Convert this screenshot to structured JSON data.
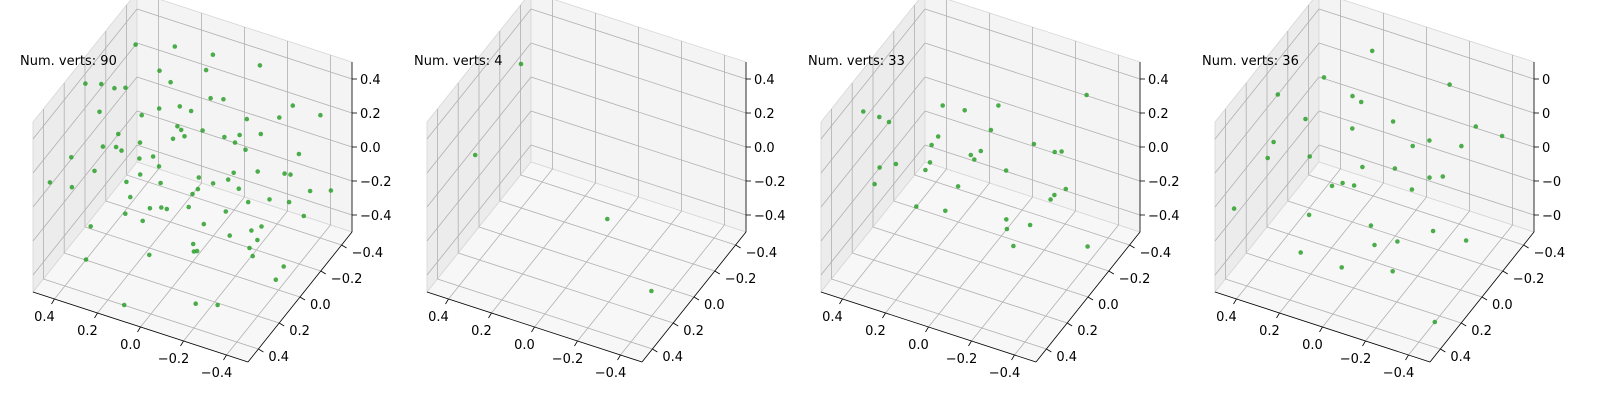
{
  "chart_data": [
    {
      "type": "scatter",
      "title": "Num. verts: 90",
      "x_ticks": [
        "0.4",
        "0.2",
        "0.0",
        "−0.2",
        "−0.4"
      ],
      "y_ticks": [
        "−0.4",
        "−0.2",
        "0.0",
        "0.2",
        "0.4"
      ],
      "z_ticks": [
        "0.4",
        "0.2",
        "0.0",
        "−0.2",
        "−0.4"
      ],
      "xlim": [
        -0.5,
        0.5
      ],
      "ylim": [
        -0.5,
        0.5
      ],
      "zlim": [
        -0.5,
        0.5
      ],
      "color": "#2ca02c",
      "points": [
        [
          0.44,
          -0.12,
          0.46
        ],
        [
          0.4,
          -0.05,
          0.42
        ],
        [
          0.36,
          0.1,
          0.3
        ],
        [
          0.46,
          0.2,
          0.18
        ],
        [
          0.3,
          0.3,
          0.05
        ],
        [
          0.42,
          0.38,
          -0.1
        ],
        [
          0.25,
          0.44,
          -0.2
        ],
        [
          0.38,
          0.15,
          -0.3
        ],
        [
          0.2,
          -0.3,
          0.4
        ],
        [
          0.15,
          -0.2,
          0.2
        ],
        [
          0.05,
          -0.4,
          0.3
        ],
        [
          0.1,
          -0.1,
          0.0
        ],
        [
          -0.05,
          -0.35,
          0.1
        ],
        [
          -0.15,
          -0.25,
          0.25
        ],
        [
          -0.2,
          -0.4,
          -0.05
        ],
        [
          -0.3,
          -0.3,
          0.15
        ],
        [
          -0.35,
          -0.1,
          -0.15
        ],
        [
          -0.4,
          -0.2,
          0.35
        ],
        [
          -0.25,
          0.05,
          -0.25
        ],
        [
          -0.1,
          0.1,
          0.2
        ],
        [
          0.0,
          0.0,
          -0.1
        ],
        [
          0.05,
          0.2,
          0.1
        ],
        [
          0.12,
          0.3,
          -0.35
        ],
        [
          -0.05,
          0.35,
          0.0
        ],
        [
          -0.2,
          0.25,
          -0.4
        ],
        [
          -0.35,
          0.3,
          0.05
        ],
        [
          -0.45,
          0.4,
          -0.2
        ],
        [
          -0.3,
          0.45,
          -0.45
        ],
        [
          0.28,
          -0.4,
          -0.1
        ],
        [
          0.35,
          -0.3,
          -0.4
        ],
        [
          0.22,
          -0.05,
          0.15
        ],
        [
          0.18,
          0.05,
          -0.05
        ],
        [
          0.08,
          -0.25,
          -0.3
        ],
        [
          -0.02,
          -0.15,
          0.4
        ],
        [
          -0.12,
          -0.05,
          0.05
        ],
        [
          -0.18,
          0.15,
          0.3
        ],
        [
          -0.28,
          0.0,
          -0.35
        ],
        [
          -0.38,
          0.1,
          0.1
        ],
        [
          -0.45,
          0.2,
          -0.05
        ],
        [
          -0.48,
          -0.05,
          0.25
        ],
        [
          0.48,
          0.05,
          -0.2
        ],
        [
          0.32,
          -0.2,
          0.2
        ],
        [
          0.26,
          0.22,
          0.35
        ],
        [
          0.14,
          0.42,
          0.25
        ],
        [
          0.02,
          0.45,
          -0.15
        ],
        [
          -0.08,
          0.28,
          -0.25
        ],
        [
          -0.22,
          0.38,
          0.15
        ],
        [
          -0.32,
          -0.42,
          -0.3
        ],
        [
          -0.42,
          -0.32,
          0.0
        ],
        [
          0.1,
          -0.45,
          -0.45
        ],
        [
          0.0,
          -0.3,
          0.05
        ],
        [
          -0.06,
          0.05,
          0.45
        ],
        [
          0.16,
          0.12,
          0.4
        ],
        [
          0.24,
          -0.15,
          -0.2
        ],
        [
          0.34,
          0.02,
          0.0
        ],
        [
          0.44,
          -0.25,
          -0.05
        ],
        [
          0.38,
          -0.38,
          0.25
        ],
        [
          -0.16,
          -0.3,
          -0.45
        ],
        [
          -0.26,
          -0.18,
          -0.1
        ],
        [
          -0.36,
          0.22,
          0.4
        ],
        [
          -0.44,
          0.32,
          0.3
        ],
        [
          -0.12,
          0.4,
          0.4
        ],
        [
          0.06,
          0.32,
          0.45
        ],
        [
          0.2,
          0.4,
          0.0
        ],
        [
          0.3,
          0.45,
          0.3
        ],
        [
          -0.02,
          -0.42,
          0.45
        ],
        [
          -0.1,
          -0.2,
          -0.2
        ],
        [
          -0.24,
          -0.1,
          0.2
        ],
        [
          0.12,
          -0.35,
          0.1
        ],
        [
          0.22,
          -0.28,
          0.3
        ],
        [
          -0.3,
          0.12,
          -0.1
        ],
        [
          -0.4,
          0.05,
          -0.4
        ],
        [
          0.4,
          0.28,
          0.4
        ],
        [
          0.02,
          0.15,
          -0.4
        ],
        [
          -0.14,
          0.22,
          0.05
        ],
        [
          0.28,
          0.1,
          -0.45
        ],
        [
          0.18,
          0.25,
          0.15
        ],
        [
          -0.06,
          -0.08,
          -0.35
        ],
        [
          0.08,
          0.02,
          0.25
        ],
        [
          -0.34,
          -0.36,
          0.4
        ],
        [
          0.46,
          -0.42,
          0.1
        ],
        [
          0.36,
          -0.15,
          0.35
        ],
        [
          -0.46,
          -0.15,
          -0.3
        ],
        [
          -0.2,
          -0.45,
          0.25
        ],
        [
          0.14,
          -0.12,
          -0.15
        ],
        [
          0.04,
          0.38,
          0.15
        ],
        [
          -0.28,
          0.35,
          -0.3
        ],
        [
          -0.38,
          -0.25,
          0.2
        ],
        [
          0.26,
          0.35,
          -0.15
        ],
        [
          -0.1,
          0.45,
          -0.05
        ]
      ]
    },
    {
      "type": "scatter",
      "title": "Num. verts: 4",
      "x_ticks": [
        "0.4",
        "0.2",
        "0.0",
        "−0.2",
        "−0.4"
      ],
      "y_ticks": [
        "−0.4",
        "−0.2",
        "0.0",
        "0.2",
        "0.4"
      ],
      "z_ticks": [
        "0.4",
        "0.2",
        "0.0",
        "−0.2",
        "−0.4"
      ],
      "xlim": [
        -0.5,
        0.5
      ],
      "ylim": [
        -0.5,
        0.5
      ],
      "zlim": [
        -0.5,
        0.5
      ],
      "color": "#2ca02c",
      "points": [
        [
          0.45,
          0.3,
          0.25
        ],
        [
          0.3,
          -0.45,
          0.35
        ],
        [
          0.0,
          0.2,
          -0.4
        ],
        [
          -0.35,
          -0.1,
          -0.45
        ]
      ]
    },
    {
      "type": "scatter",
      "title": "Num. verts: 33",
      "x_ticks": [
        "0.4",
        "0.2",
        "0.0",
        "−0.2",
        "−0.4"
      ],
      "y_ticks": [
        "−0.4",
        "−0.2",
        "0.0",
        "0.2",
        "0.4"
      ],
      "z_ticks": [
        "0.4",
        "0.2",
        "0.0",
        "−0.2",
        "−0.4"
      ],
      "xlim": [
        -0.5,
        0.5
      ],
      "ylim": [
        -0.5,
        0.5
      ],
      "zlim": [
        -0.5,
        0.5
      ],
      "color": "#2ca02c",
      "points": [
        [
          0.4,
          -0.3,
          0.45
        ],
        [
          0.35,
          -0.25,
          0.4
        ],
        [
          0.2,
          -0.4,
          0.3
        ],
        [
          0.1,
          -0.2,
          0.35
        ],
        [
          0.45,
          0.05,
          0.1
        ],
        [
          0.3,
          0.15,
          -0.05
        ],
        [
          0.15,
          0.25,
          -0.15
        ],
        [
          0.0,
          0.1,
          0.2
        ],
        [
          -0.05,
          -0.1,
          0.25
        ],
        [
          -0.1,
          -0.3,
          0.4
        ],
        [
          -0.2,
          0.3,
          0.0
        ],
        [
          -0.3,
          0.2,
          -0.1
        ],
        [
          -0.35,
          -0.05,
          0.05
        ],
        [
          -0.45,
          0.1,
          -0.3
        ],
        [
          -0.15,
          0.4,
          -0.35
        ],
        [
          0.05,
          0.35,
          -0.25
        ],
        [
          0.25,
          -0.1,
          -0.2
        ],
        [
          0.38,
          0.3,
          -0.3
        ],
        [
          0.12,
          0.42,
          0.05
        ],
        [
          -0.25,
          -0.2,
          -0.15
        ],
        [
          -0.4,
          -0.35,
          0.15
        ],
        [
          0.2,
          0.05,
          0.3
        ],
        [
          -0.05,
          0.15,
          -0.4
        ],
        [
          0.08,
          -0.05,
          -0.05
        ],
        [
          -0.12,
          0.0,
          -0.2
        ],
        [
          0.3,
          -0.35,
          0.2
        ],
        [
          -0.3,
          0.4,
          0.3
        ],
        [
          0.45,
          0.4,
          -0.45
        ],
        [
          -0.45,
          -0.15,
          0.45
        ],
        [
          0.18,
          0.22,
          0.15
        ],
        [
          -0.02,
          -0.38,
          0.1
        ],
        [
          0.42,
          -0.15,
          -0.1
        ],
        [
          -0.2,
          0.1,
          0.2
        ]
      ]
    },
    {
      "type": "scatter",
      "title": "Num. verts: 36",
      "x_ticks": [
        "0.4",
        "0.2",
        "0.0",
        "−0.2",
        "−0.4"
      ],
      "y_ticks": [
        "−0.4",
        "−0.2",
        "0.0",
        "0.2",
        "0.4"
      ],
      "z_ticks": [
        "0",
        "0",
        "0",
        "−0",
        "−0"
      ],
      "xlim": [
        -0.5,
        0.5
      ],
      "ylim": [
        -0.5,
        0.5
      ],
      "zlim": [
        -0.5,
        0.5
      ],
      "color": "#2ca02c",
      "points": [
        [
          0.45,
          0.0,
          0.3
        ],
        [
          0.4,
          -0.2,
          0.1
        ],
        [
          0.35,
          0.1,
          -0.1
        ],
        [
          0.3,
          -0.35,
          0.35
        ],
        [
          0.2,
          0.2,
          0.05
        ],
        [
          0.1,
          -0.1,
          0.0
        ],
        [
          0.05,
          0.3,
          -0.2
        ],
        [
          -0.05,
          -0.3,
          0.2
        ],
        [
          -0.15,
          0.05,
          -0.05
        ],
        [
          -0.25,
          -0.15,
          0.4
        ],
        [
          -0.35,
          0.25,
          0.25
        ],
        [
          -0.45,
          -0.05,
          -0.15
        ],
        [
          0.25,
          0.4,
          -0.35
        ],
        [
          0.15,
          -0.4,
          -0.2
        ],
        [
          -0.1,
          0.45,
          -0.3
        ],
        [
          -0.3,
          -0.4,
          0.05
        ],
        [
          0.0,
          0.0,
          -0.4
        ],
        [
          -0.2,
          0.15,
          -0.35
        ],
        [
          0.38,
          0.3,
          0.2
        ],
        [
          -0.4,
          0.4,
          0.1
        ],
        [
          0.12,
          0.12,
          0.3
        ],
        [
          -0.08,
          -0.2,
          -0.1
        ],
        [
          0.28,
          -0.05,
          -0.3
        ],
        [
          -0.18,
          0.35,
          0.35
        ],
        [
          0.45,
          -0.42,
          -0.05
        ],
        [
          -0.45,
          -0.35,
          -0.4
        ],
        [
          0.02,
          0.22,
          0.15
        ],
        [
          -0.28,
          -0.05,
          0.15
        ],
        [
          0.2,
          -0.25,
          0.45
        ],
        [
          -0.02,
          -0.45,
          0.3
        ],
        [
          0.32,
          0.45,
          0.0
        ],
        [
          -0.12,
          0.28,
          0.05
        ],
        [
          0.08,
          -0.15,
          -0.45
        ],
        [
          -0.38,
          0.05,
          0.3
        ],
        [
          0.18,
          0.35,
          0.4
        ],
        [
          -0.22,
          -0.28,
          -0.25
        ]
      ]
    }
  ]
}
